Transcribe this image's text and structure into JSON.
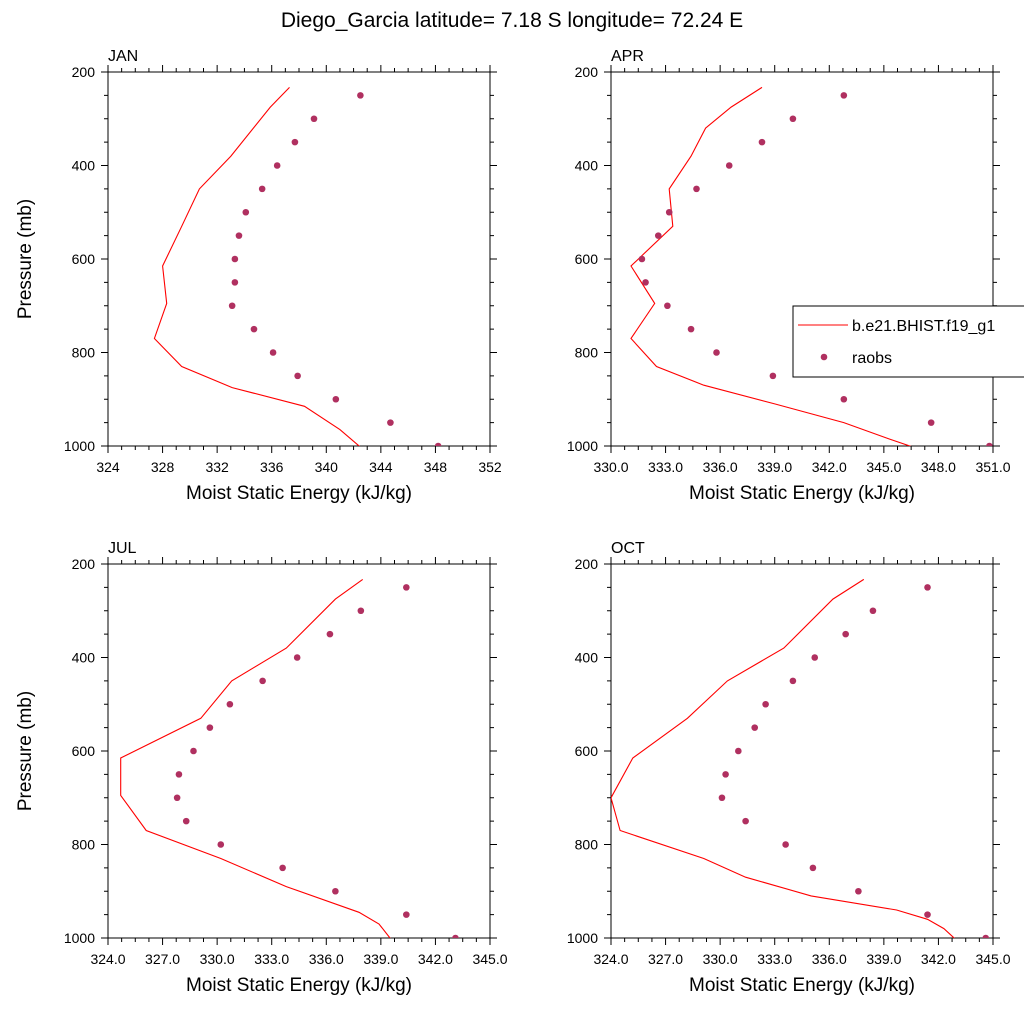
{
  "title": "Diego_Garcia  latitude= 7.18 S longitude= 72.24 E",
  "legend": {
    "model_label": "b.e21.BHIST.f19_g1",
    "obs_label": "raobs",
    "colors": {
      "model": "#ff0000",
      "obs": "#b03060"
    }
  },
  "chart_data": [
    {
      "type": "line",
      "panel_label": "JAN",
      "xlabel": "Moist Static Energy (kJ/kg)",
      "ylabel": "Pressure (mb)",
      "xlim": [
        324,
        352
      ],
      "ylim": [
        1000,
        200
      ],
      "y_reversed": true,
      "xticks": [
        324,
        328,
        332,
        336,
        340,
        344,
        348,
        352
      ],
      "xtick_labels": [
        "324",
        "328",
        "332",
        "336",
        "340",
        "344",
        "348",
        "352"
      ],
      "yticks": [
        200,
        400,
        600,
        800,
        1000
      ],
      "ytick_labels": [
        "200",
        "400",
        "600",
        "800",
        "1000"
      ],
      "series": [
        {
          "name": "b.e21.BHIST.f19_g1",
          "kind": "line",
          "x": [
            337.3,
            335.9,
            333.0,
            330.7,
            329.4,
            328.0,
            328.3,
            327.4,
            329.4,
            333.1,
            338.4,
            341.0,
            342.6
          ],
          "y": [
            233,
            275,
            380,
            450,
            530,
            615,
            695,
            770,
            830,
            875,
            915,
            965,
            1005
          ]
        },
        {
          "name": "raobs",
          "kind": "scatter",
          "x": [
            342.5,
            339.1,
            337.7,
            336.4,
            335.3,
            334.1,
            333.6,
            333.3,
            333.3,
            333.1,
            334.7,
            336.1,
            337.9,
            340.7,
            344.7,
            348.2
          ],
          "y": [
            250,
            300,
            350,
            400,
            450,
            500,
            550,
            600,
            650,
            700,
            750,
            800,
            850,
            900,
            950,
            1000
          ]
        }
      ]
    },
    {
      "type": "line",
      "panel_label": "APR",
      "xlabel": "Moist Static Energy (kJ/kg)",
      "ylabel": "",
      "xlim": [
        330,
        351
      ],
      "ylim": [
        1000,
        200
      ],
      "y_reversed": true,
      "xticks": [
        330,
        333,
        336,
        339,
        342,
        345,
        348,
        351
      ],
      "xtick_labels": [
        "330.0",
        "333.0",
        "336.0",
        "339.0",
        "342.0",
        "345.0",
        "348.0",
        "351.0"
      ],
      "yticks": [
        200,
        400,
        600,
        800,
        1000
      ],
      "ytick_labels": [
        "200",
        "400",
        "600",
        "800",
        "1000"
      ],
      "series": [
        {
          "name": "b.e21.BHIST.f19_g1",
          "kind": "line",
          "x": [
            338.3,
            336.6,
            335.2,
            334.4,
            333.2,
            333.3,
            333.4,
            331.1,
            332.4,
            331.1,
            332.5,
            335.1,
            339.0,
            342.8,
            345.3,
            346.8
          ],
          "y": [
            233,
            275,
            320,
            380,
            450,
            490,
            530,
            615,
            695,
            770,
            830,
            870,
            910,
            950,
            985,
            1005
          ]
        },
        {
          "name": "raobs",
          "kind": "scatter",
          "x": [
            342.8,
            340.0,
            338.3,
            336.5,
            334.7,
            333.2,
            332.6,
            331.7,
            331.9,
            333.1,
            334.4,
            335.8,
            338.9,
            342.8,
            347.6,
            350.8
          ],
          "y": [
            250,
            300,
            350,
            400,
            450,
            500,
            550,
            600,
            650,
            700,
            750,
            800,
            850,
            900,
            950,
            1000
          ]
        }
      ]
    },
    {
      "type": "line",
      "panel_label": "JUL",
      "xlabel": "Moist Static Energy (kJ/kg)",
      "ylabel": "Pressure (mb)",
      "xlim": [
        324,
        345
      ],
      "ylim": [
        1000,
        200
      ],
      "y_reversed": true,
      "xticks": [
        324,
        327,
        330,
        333,
        336,
        339,
        342,
        345
      ],
      "xtick_labels": [
        "324.0",
        "327.0",
        "330.0",
        "333.0",
        "336.0",
        "339.0",
        "342.0",
        "345.0"
      ],
      "yticks": [
        200,
        400,
        600,
        800,
        1000
      ],
      "ytick_labels": [
        "200",
        "400",
        "600",
        "800",
        "1000"
      ],
      "series": [
        {
          "name": "b.e21.BHIST.f19_g1",
          "kind": "line",
          "x": [
            338.0,
            336.5,
            333.8,
            330.8,
            329.1,
            324.7,
            324.7,
            326.1,
            330.2,
            333.8,
            337.8,
            338.9,
            339.6
          ],
          "y": [
            233,
            275,
            380,
            450,
            530,
            615,
            695,
            770,
            830,
            890,
            945,
            970,
            1005
          ]
        },
        {
          "name": "raobs",
          "kind": "scatter",
          "x": [
            340.4,
            337.9,
            336.2,
            334.4,
            332.5,
            330.7,
            329.6,
            328.7,
            327.9,
            327.8,
            328.3,
            330.2,
            333.6,
            336.5,
            340.4,
            343.1
          ],
          "y": [
            250,
            300,
            350,
            400,
            450,
            500,
            550,
            600,
            650,
            700,
            750,
            800,
            850,
            900,
            950,
            1000
          ]
        }
      ]
    },
    {
      "type": "line",
      "panel_label": "OCT",
      "xlabel": "Moist Static Energy (kJ/kg)",
      "ylabel": "",
      "xlim": [
        324,
        345
      ],
      "ylim": [
        1000,
        200
      ],
      "y_reversed": true,
      "xticks": [
        324,
        327,
        330,
        333,
        336,
        339,
        342,
        345
      ],
      "xtick_labels": [
        "324.0",
        "327.0",
        "330.0",
        "333.0",
        "336.0",
        "339.0",
        "342.0",
        "345.0"
      ],
      "yticks": [
        200,
        400,
        600,
        800,
        1000
      ],
      "ytick_labels": [
        "200",
        "400",
        "600",
        "800",
        "1000"
      ],
      "series": [
        {
          "name": "b.e21.BHIST.f19_g1",
          "kind": "line",
          "x": [
            337.9,
            336.2,
            333.5,
            330.4,
            328.2,
            325.2,
            324.0,
            324.5,
            329.1,
            331.4,
            335.0,
            339.7,
            341.4,
            342.3,
            343.0
          ],
          "y": [
            233,
            275,
            380,
            450,
            530,
            615,
            700,
            770,
            830,
            870,
            910,
            940,
            960,
            980,
            1005
          ]
        },
        {
          "name": "raobs",
          "kind": "scatter",
          "x": [
            341.4,
            338.4,
            336.9,
            335.2,
            334.0,
            332.5,
            331.9,
            331.0,
            330.3,
            330.1,
            331.4,
            333.6,
            335.1,
            337.6,
            341.4,
            344.6
          ],
          "y": [
            250,
            300,
            350,
            400,
            450,
            500,
            550,
            600,
            650,
            700,
            750,
            800,
            850,
            900,
            950,
            1000
          ]
        }
      ]
    }
  ]
}
